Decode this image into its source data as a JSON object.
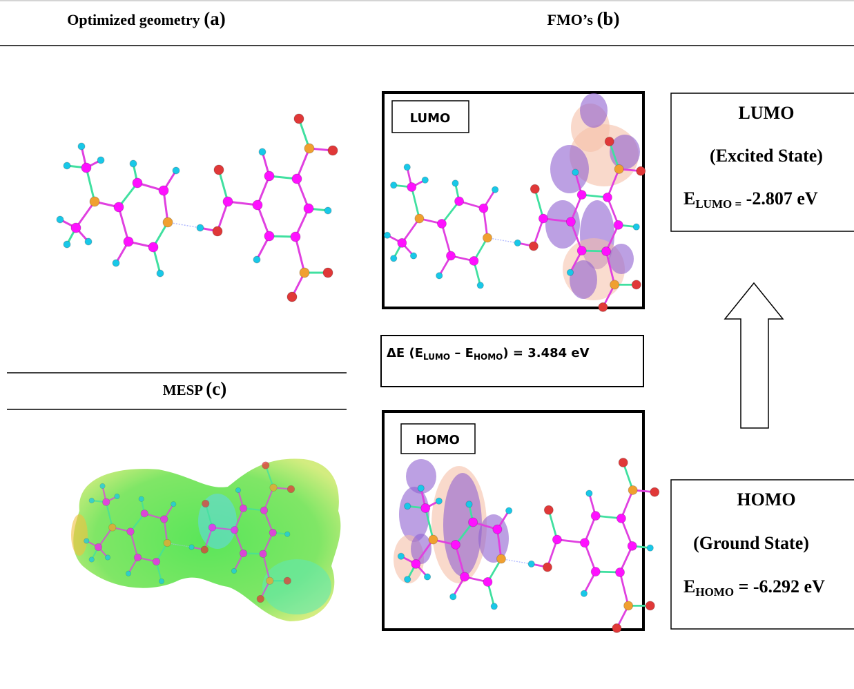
{
  "header": {
    "panel_a": {
      "title": "Optimized geometry",
      "letter": "(a)"
    },
    "panel_b": {
      "title": "FMO’s",
      "letter": "(b)"
    }
  },
  "panel_c": {
    "title": "MESP",
    "letter": "(c)"
  },
  "lumo_box_label": "LUMO",
  "homo_box_label": "HOMO",
  "gap": {
    "prefix": "ΔE (E",
    "sub1": "LUMO",
    "mid": " – E",
    "sub2": "HOMO",
    "suffix": ") =  3.484 eV"
  },
  "lumo_info": {
    "title": "LUMO",
    "state": "(Excited State)",
    "e": "E",
    "sub": "LUMO =",
    "value": " -2.807 eV"
  },
  "homo_info": {
    "title": "HOMO",
    "state": "(Ground State)",
    "e": "E",
    "sub": "HOMO",
    "value": " = -6.292 eV"
  }
}
